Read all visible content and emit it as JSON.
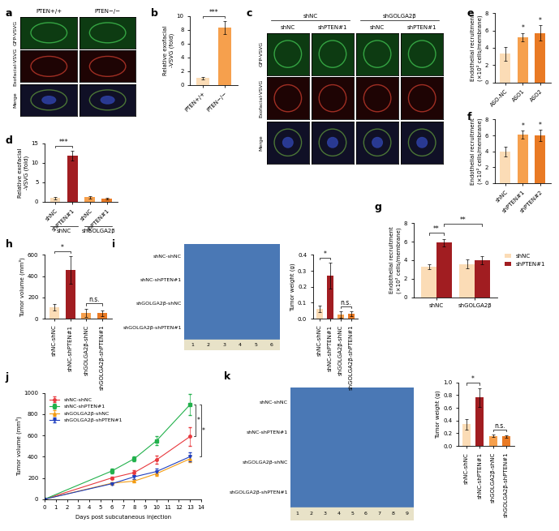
{
  "chart_data": [
    {
      "panel_label": "b",
      "type": "bar",
      "categories": [
        "PTEN+/+",
        "PTEN−/−"
      ],
      "values": [
        1.0,
        8.3
      ],
      "errors": [
        0.2,
        0.9
      ],
      "colors": [
        "#fbdcb6",
        "#f6a04d"
      ],
      "y_label": "Relative exofacial\n-VSVG (fold)",
      "ylim": [
        0,
        10
      ],
      "yticks": [
        0,
        2,
        4,
        6,
        8,
        10
      ],
      "annotations": [
        {
          "text": "***",
          "from": 0,
          "to": 1
        }
      ]
    },
    {
      "panel_label": "d",
      "type": "bar",
      "categories": [
        "shNC",
        "shPTEN#1",
        "shNC",
        "shPTEN#1"
      ],
      "group_labels": [
        "shNC",
        "shGOLGA2β"
      ],
      "values": [
        1.0,
        11.8,
        1.2,
        0.9
      ],
      "errors": [
        0.3,
        1.3,
        0.3,
        0.2
      ],
      "colors": [
        "#fbdcb6",
        "#a11d21",
        "#f6a04d",
        "#e97a24"
      ],
      "y_label": "Relative exofacial\n-VSVG (fold)",
      "ylim": [
        0,
        15
      ],
      "yticks": [
        0,
        5,
        10,
        15
      ],
      "annotations": [
        {
          "text": "***",
          "from": 0,
          "to": 1
        }
      ]
    },
    {
      "panel_label": "e",
      "type": "bar",
      "categories": [
        "ASO-NC",
        "ASO1",
        "ASO2"
      ],
      "values": [
        3.3,
        5.2,
        5.7
      ],
      "errors": [
        0.8,
        0.5,
        0.9
      ],
      "colors": [
        "#fbdcb6",
        "#f6a04d",
        "#e97a24"
      ],
      "y_label": "Endothelial recruitment\n(×10² cells/membrane)",
      "ylim": [
        0,
        8
      ],
      "yticks": [
        0,
        2,
        4,
        6,
        8
      ],
      "annotations": [
        {
          "text": "*",
          "at": 1
        },
        {
          "text": "*",
          "at": 2
        }
      ]
    },
    {
      "panel_label": "f",
      "type": "bar",
      "categories": [
        "shNC",
        "shPTEN#1",
        "shPTEN#2"
      ],
      "values": [
        4.0,
        6.1,
        6.0
      ],
      "errors": [
        0.6,
        0.5,
        0.7
      ],
      "colors": [
        "#fbdcb6",
        "#f6a04d",
        "#e97a24"
      ],
      "y_label": "Endothelial recruitment\n(×10² cells/membrane)",
      "ylim": [
        0,
        8
      ],
      "yticks": [
        0,
        2,
        4,
        6,
        8
      ],
      "annotations": [
        {
          "text": "*",
          "at": 1
        },
        {
          "text": "*",
          "at": 2
        }
      ]
    },
    {
      "panel_label": "g",
      "type": "bar",
      "categories": [
        "shNC",
        "shGOLGA2β"
      ],
      "series": [
        {
          "name": "shNC",
          "color": "#fbdcb6",
          "values": [
            3.3,
            3.6
          ],
          "errors": [
            0.3,
            0.5
          ]
        },
        {
          "name": "shPTEN#1",
          "color": "#a11d21",
          "values": [
            5.9,
            4.0
          ],
          "errors": [
            0.4,
            0.4
          ]
        }
      ],
      "y_label": "Endothelial recruitment\n(×10² cells/membrane)",
      "ylim": [
        0,
        8
      ],
      "yticks": [
        0,
        2,
        4,
        6,
        8
      ],
      "legend": "right",
      "annotations": [
        {
          "text": "**",
          "from": 0,
          "to": 1
        },
        {
          "text": "**",
          "from": 1,
          "to": 3
        }
      ]
    },
    {
      "panel_label": "h",
      "type": "bar",
      "categories": [
        "shNC-shNC",
        "shNC-shPTEN#1",
        "shGOLGA2β-shNC",
        "shGOLGA2β-shPTEN#1"
      ],
      "values": [
        110,
        455,
        55,
        50
      ],
      "errors": [
        30,
        130,
        40,
        25
      ],
      "colors": [
        "#fbdcb6",
        "#a11d21",
        "#f6a04d",
        "#e97a24"
      ],
      "y_label": "Tumor volume (mm³)",
      "ylim": [
        0,
        600
      ],
      "yticks": [
        0,
        200,
        400,
        600
      ],
      "annotations": [
        {
          "text": "*",
          "from": 0,
          "to": 1
        },
        {
          "text": "n.s.",
          "from": 2,
          "to": 3
        }
      ]
    },
    {
      "panel_label": "i",
      "type": "bar",
      "categories": [
        "shNC-shNC",
        "shNC-shPTEN#1",
        "shGOLGA2β-shNC",
        "shGOLGA2β-shPTEN#1"
      ],
      "values": [
        0.06,
        0.27,
        0.025,
        0.03
      ],
      "errors": [
        0.02,
        0.08,
        0.02,
        0.015
      ],
      "colors": [
        "#fbdcb6",
        "#a11d21",
        "#f6a04d",
        "#e97a24"
      ],
      "y_label": "Tumor weight (g)",
      "ylim": [
        0,
        0.4
      ],
      "yticks": [
        {
          "value": 0,
          "label": "0.0"
        },
        0.1,
        0.2,
        0.3,
        0.4
      ],
      "annotations": [
        {
          "text": "*",
          "from": 0,
          "to": 1
        },
        {
          "text": "n.s.",
          "from": 2,
          "to": 3
        }
      ]
    },
    {
      "panel_label": "j",
      "type": "line",
      "x": [
        0,
        6,
        8,
        10,
        13
      ],
      "x_label": "Days post subcutaneous injection",
      "y_label": "Tumor volume (mm³)",
      "xlim": [
        0,
        14
      ],
      "xticks": [
        0,
        1,
        2,
        3,
        4,
        5,
        6,
        7,
        8,
        9,
        10,
        11,
        12,
        13,
        14
      ],
      "ylim": [
        0,
        1000
      ],
      "yticks": [
        0,
        200,
        400,
        600,
        800,
        1000
      ],
      "legend": "upper left",
      "series": [
        {
          "name": "shNC-shNC",
          "color": "#e8383d",
          "marker": "o",
          "values": [
            0,
            200,
            250,
            370,
            590
          ],
          "errors": [
            0,
            15,
            25,
            40,
            90
          ]
        },
        {
          "name": "shNC-shPTEN#1",
          "color": "#22b14c",
          "marker": "s",
          "values": [
            0,
            265,
            380,
            550,
            890
          ],
          "errors": [
            0,
            20,
            20,
            40,
            100
          ]
        },
        {
          "name": "shGOLGA2β-shNC",
          "color": "#f39c12",
          "marker": "^",
          "values": [
            0,
            150,
            170,
            240,
            380
          ],
          "errors": [
            0,
            10,
            15,
            20,
            30
          ]
        },
        {
          "name": "shGOLGA2β-shPTEN#1",
          "color": "#1f3fbf",
          "marker": "v",
          "values": [
            0,
            145,
            210,
            260,
            400
          ],
          "errors": [
            0,
            10,
            20,
            25,
            40
          ]
        }
      ],
      "annotations": [
        {
          "text": "*",
          "from": 1,
          "to": 0
        },
        {
          "text": "*",
          "from": 1,
          "to": 3
        }
      ]
    },
    {
      "panel_label": "k",
      "type": "bar",
      "categories": [
        "shNC-shNC",
        "shNC-shPTEN#1",
        "shGOLGA2β-shNC",
        "shGOLGA2β-shPTEN#1"
      ],
      "values": [
        0.34,
        0.76,
        0.16,
        0.15
      ],
      "errors": [
        0.08,
        0.15,
        0.02,
        0.02
      ],
      "colors": [
        "#fbdcb6",
        "#a11d21",
        "#f6a04d",
        "#e97a24"
      ],
      "y_label": "Tumor weight (g)",
      "ylim": [
        0,
        1.0
      ],
      "yticks": [
        {
          "value": 0,
          "label": "0.0"
        },
        0.2,
        0.4,
        0.6,
        0.8,
        {
          "value": 1.0,
          "label": "1.0"
        }
      ],
      "annotations": [
        {
          "text": "*",
          "from": 0,
          "to": 1
        },
        {
          "text": "n.s.",
          "from": 2,
          "to": 3
        }
      ]
    }
  ],
  "image_panels": [
    {
      "panel_label": "a",
      "type": "image_grid",
      "columns": [
        "PTEN+/+",
        "PTEN−/−"
      ],
      "rows": [
        "GFP-VSVG",
        "Exofacial-VSVG",
        "Merge"
      ]
    },
    {
      "panel_label": "c",
      "type": "image_grid",
      "column_groups": [
        "shNC",
        "shGOLGA2β"
      ],
      "columns": [
        "shNC",
        "shPTEN#1",
        "shNC",
        "shPTEN#1"
      ],
      "rows": [
        "GFP-VSVG",
        "Exofacial-VSVG",
        "Merge"
      ]
    },
    {
      "panel_label": "i",
      "type": "photo",
      "rows": [
        "shNC-shNC",
        "shNC-shPTEN#1",
        "shGOLGA2β-shNC",
        "shGOLGA2β-shPTEN#1"
      ],
      "ruler": [
        1,
        2,
        3,
        4,
        5,
        6
      ]
    },
    {
      "panel_label": "k",
      "type": "photo",
      "rows": [
        "shNC-shNC",
        "shNC-shPTEN#1",
        "shGOLGA2β-shNC",
        "shGOLGA2β-shPTEN#1"
      ],
      "ruler": [
        1,
        2,
        3,
        4,
        5,
        6,
        7,
        8,
        9
      ]
    }
  ]
}
